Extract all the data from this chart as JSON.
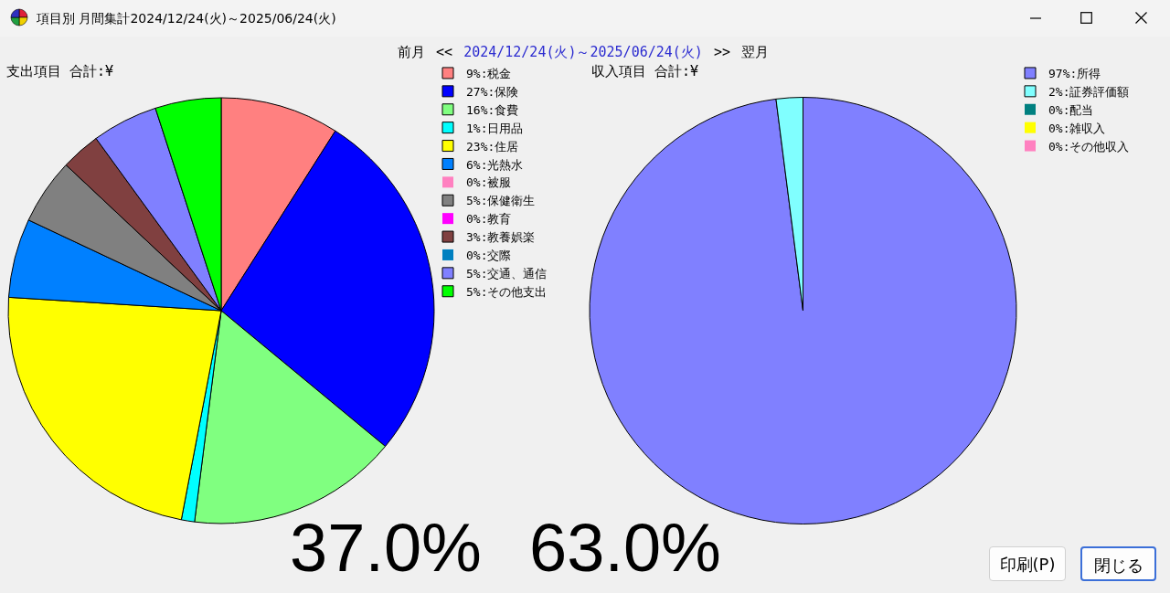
{
  "chart_data": [
    {
      "type": "pie",
      "title": "支出項目 合計:¥",
      "categories": [
        "9%:税金",
        "27%:保険",
        "16%:食費",
        "1%:日用品",
        "23%:住居",
        "6%:光熱水",
        "0%:被服",
        "5%:保健衛生",
        "0%:教育",
        "3%:教養娯楽",
        "0%:交際",
        "5%:交通、通信",
        "5%:その他支出"
      ],
      "values": [
        9,
        27,
        16,
        1,
        23,
        6,
        0,
        5,
        0,
        3,
        0,
        5,
        5
      ],
      "colors": [
        "#ff8080",
        "#0000ff",
        "#80ff80",
        "#00ffff",
        "#ffff00",
        "#0080ff",
        "#ff80c0",
        "#808080",
        "#ff00ff",
        "#804040",
        "#0080c0",
        "#8080ff",
        "#00ff00"
      ],
      "legend": "top right",
      "annotations": [
        "項目別 月間集計2024/12/24(火)～2025/06/24(火)",
        "前月",
        "<<",
        "2024/12/24(火)～2025/06/24(火)",
        ">>",
        "翌月",
        "37.0%"
      ]
    },
    {
      "type": "pie",
      "title": "収入項目 合計:¥",
      "categories": [
        "97%:所得",
        "2%:証券評価額",
        "0%:配当",
        "0%:雑収入",
        "0%:その他収入"
      ],
      "values": [
        97,
        2,
        0,
        0,
        0
      ],
      "colors": [
        "#8080ff",
        "#80ffff",
        "#008080",
        "#ffff00",
        "#ff80c0"
      ],
      "legend": "top right",
      "annotations": [
        "63.0%",
        "印刷(P)",
        "閉じる"
      ]
    }
  ]
}
